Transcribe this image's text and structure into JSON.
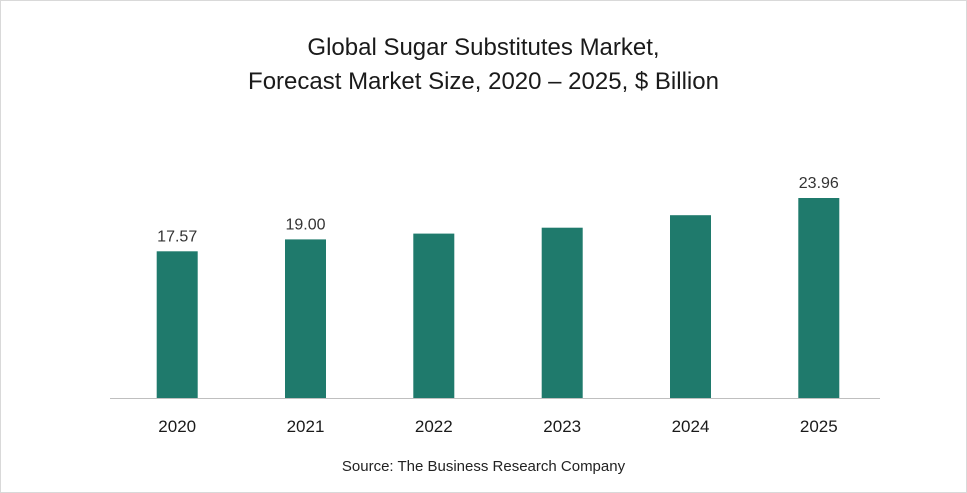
{
  "chart_data": {
    "type": "bar",
    "title": "Global Sugar Substitutes Market,",
    "subtitle": "Forecast Market Size, 2020 – 2025, $ Billion",
    "categories": [
      "2020",
      "2021",
      "2022",
      "2023",
      "2024",
      "2025"
    ],
    "values": [
      17.57,
      19.0,
      19.7,
      20.4,
      21.9,
      23.96
    ],
    "data_labels": [
      "17.57",
      "19.00",
      "",
      "",
      "",
      "23.96"
    ],
    "bar_color": "#1f7a6c",
    "axis_color": "#bfbfbf",
    "ylim": [
      0,
      24
    ],
    "grid": false,
    "legend": "none",
    "xlabel": "",
    "ylabel": ""
  },
  "source": "Source: The Business Research Company"
}
